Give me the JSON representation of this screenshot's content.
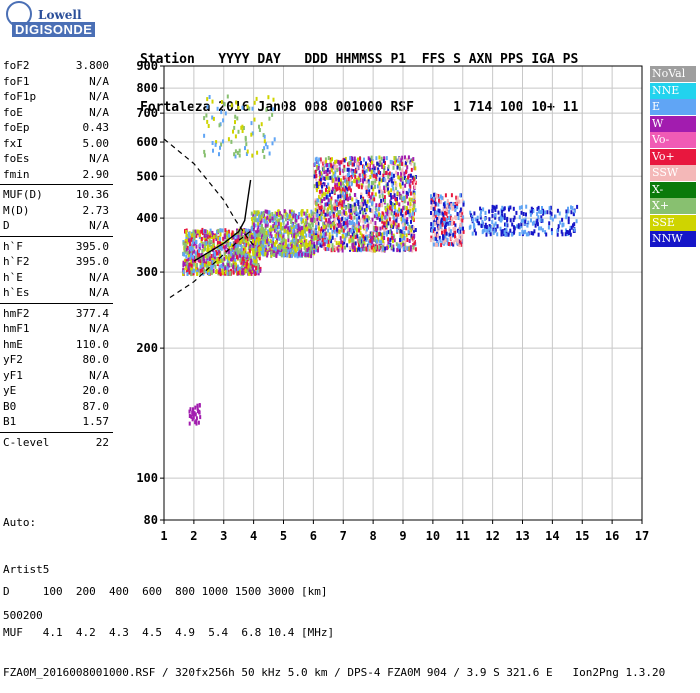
{
  "logo": {
    "line1": "Lowell",
    "line2": "DIGISONDE"
  },
  "header": {
    "line1": "Station   YYYY DAY   DDD HHMMSS P1  FFS S AXN PPS IGA PS",
    "line2": "Fortaleza 2016 Jan08 008 001000 RSF     1 714 100 10+ 11"
  },
  "params": [
    {
      "name": "foF2",
      "value": "3.800"
    },
    {
      "name": "foF1",
      "value": "N/A"
    },
    {
      "name": "foF1p",
      "value": "N/A"
    },
    {
      "name": "foE",
      "value": "N/A"
    },
    {
      "name": "foEp",
      "value": "0.43"
    },
    {
      "name": "fxI",
      "value": "5.00"
    },
    {
      "name": "foEs",
      "value": "N/A"
    },
    {
      "name": "fmin",
      "value": "2.90"
    },
    {
      "name": "MUF(D)",
      "value": "10.36"
    },
    {
      "name": "M(D)",
      "value": "2.73"
    },
    {
      "name": "D",
      "value": "N/A"
    },
    {
      "name": "h`F",
      "value": "395.0"
    },
    {
      "name": "h`F2",
      "value": "395.0"
    },
    {
      "name": "h`E",
      "value": "N/A"
    },
    {
      "name": "h`Es",
      "value": "N/A"
    },
    {
      "name": "hmF2",
      "value": "377.4"
    },
    {
      "name": "hmF1",
      "value": "N/A"
    },
    {
      "name": "hmE",
      "value": "110.0"
    },
    {
      "name": "yF2",
      "value": "80.0"
    },
    {
      "name": "yF1",
      "value": "N/A"
    },
    {
      "name": "yE",
      "value": "20.0"
    },
    {
      "name": "B0",
      "value": "87.0"
    },
    {
      "name": "B1",
      "value": "1.57"
    },
    {
      "name": "C-level",
      "value": "22"
    }
  ],
  "auto": {
    "line1": "Auto:",
    "line2": "Artist5",
    "line3": "500200"
  },
  "footer": {
    "line1": "D     100  200  400  600  800 1000 1500 3000 [km]",
    "line2": "MUF   4.1  4.2  4.3  4.5  4.9  5.4  6.8 10.4 [MHz]",
    "line3": "FZA0M_2016008001000.RSF / 320fx256h 50 kHz 5.0 km / DPS-4 FZA0M 904 / 3.9 S 321.6 E   Ion2Png 1.3.20"
  },
  "legend": [
    {
      "label": "NoVal",
      "color": "#9e9e9e",
      "text": "#ffffff"
    },
    {
      "label": "NNE",
      "color": "#22d3ee",
      "text": "#ffffff"
    },
    {
      "label": "E",
      "color": "#60a5f5",
      "text": "#ffffff"
    },
    {
      "label": "W",
      "color": "#a21caf",
      "text": "#ffffff"
    },
    {
      "label": "Vo-",
      "color": "#f05bb5",
      "text": "#ffffff"
    },
    {
      "label": "Vo+",
      "color": "#e8173e",
      "text": "#ffffff"
    },
    {
      "label": "SSW",
      "color": "#f4b8b8",
      "text": "#ffffff"
    },
    {
      "label": "X-",
      "color": "#0a7a0a",
      "text": "#ffffff"
    },
    {
      "label": "X+",
      "color": "#88c070",
      "text": "#ffffff"
    },
    {
      "label": "SSE",
      "color": "#cfd400",
      "text": "#ffffff"
    },
    {
      "label": "NNW",
      "color": "#1616c8",
      "text": "#ffffff"
    }
  ],
  "chart_data": {
    "type": "scatter",
    "xlabel": "",
    "ylabel": "",
    "xlim": [
      1,
      17
    ],
    "ylim": [
      80,
      900
    ],
    "y_scale": "log",
    "x_ticks": [
      "1",
      "2",
      "3",
      "4",
      "5",
      "6",
      "7",
      "8",
      "9",
      "10",
      "11",
      "12",
      "13",
      "14",
      "15",
      "16",
      "17"
    ],
    "y_ticks": [
      "80",
      "100",
      "200",
      "300",
      "400",
      "500",
      "600",
      "700",
      "800",
      "900"
    ],
    "grid": true,
    "legend_position": "right",
    "clusters": [
      {
        "x": [
          1.6,
          4.2
        ],
        "y": [
          300,
          380
        ],
        "colors": [
          "SSE",
          "E",
          "W",
          "Vo+",
          "X+"
        ]
      },
      {
        "x": [
          3.9,
          6.0
        ],
        "y": [
          330,
          420
        ],
        "colors": [
          "SSE",
          "E",
          "X+",
          "W"
        ]
      },
      {
        "x": [
          6.0,
          9.4
        ],
        "y": [
          340,
          560
        ],
        "colors": [
          "SSE",
          "E",
          "SSW",
          "X+",
          "W",
          "NNW",
          "Vo+"
        ]
      },
      {
        "x": [
          9.9,
          11.0
        ],
        "y": [
          350,
          460
        ],
        "colors": [
          "NNW",
          "SSW",
          "Vo+",
          "E"
        ]
      },
      {
        "x": [
          11.2,
          14.8
        ],
        "y": [
          370,
          430
        ],
        "colors": [
          "E",
          "NNW"
        ]
      },
      {
        "x": [
          2.3,
          4.7
        ],
        "y": [
          560,
          780
        ],
        "colors": [
          "SSE",
          "E",
          "X+"
        ]
      },
      {
        "x": [
          1.8,
          2.2
        ],
        "y": [
          135,
          150
        ],
        "colors": [
          "W"
        ]
      }
    ],
    "dashed_curve": [
      [
        1.0,
        610
      ],
      [
        2.0,
        535
      ],
      [
        3.0,
        440
      ],
      [
        3.4,
        395
      ],
      [
        3.8,
        360
      ],
      [
        4.0,
        346
      ]
    ],
    "dashed_curve_lower": [
      [
        1.2,
        262
      ],
      [
        2.0,
        285
      ],
      [
        3.0,
        330
      ],
      [
        3.5,
        355
      ],
      [
        4.0,
        378
      ]
    ],
    "profile_curve": [
      [
        2.0,
        318
      ],
      [
        3.0,
        350
      ],
      [
        3.5,
        372
      ],
      [
        3.7,
        395
      ],
      [
        3.8,
        440
      ],
      [
        3.9,
        490
      ]
    ]
  }
}
